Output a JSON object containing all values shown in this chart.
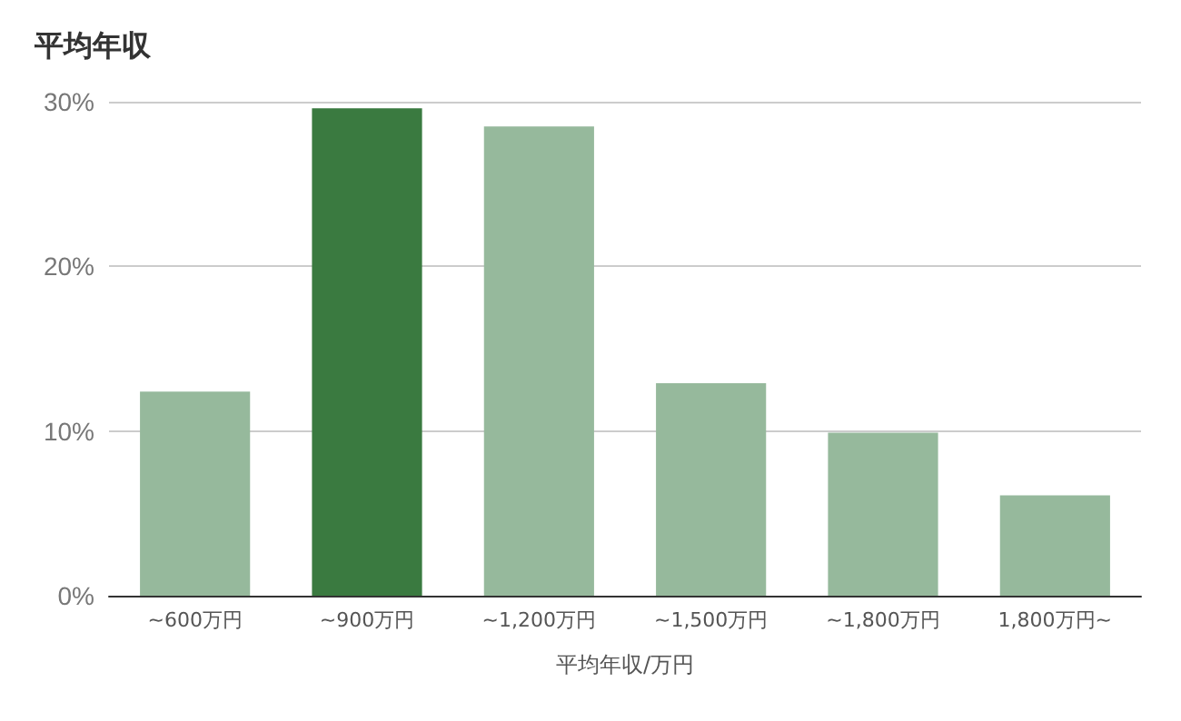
{
  "chart_data": {
    "type": "bar",
    "title": "平均年収",
    "xlabel": "平均年収/万円",
    "categories": [
      "~600万円",
      "~900万円",
      "~1,200万円",
      "~1,500万円",
      "~1,800万円",
      "1,800万円~"
    ],
    "values": [
      12.4,
      29.6,
      28.5,
      12.9,
      9.9,
      6.1
    ],
    "colors": [
      "#96b99c",
      "#3a7a40",
      "#96b99c",
      "#96b99c",
      "#96b99c",
      "#96b99c"
    ],
    "ylim": [
      0,
      30
    ],
    "yticks": [
      {
        "value": 0,
        "label": "0%"
      },
      {
        "value": 10,
        "label": "10%"
      },
      {
        "value": 20,
        "label": "20%"
      },
      {
        "value": 30,
        "label": "30%"
      }
    ],
    "grid": "y"
  }
}
